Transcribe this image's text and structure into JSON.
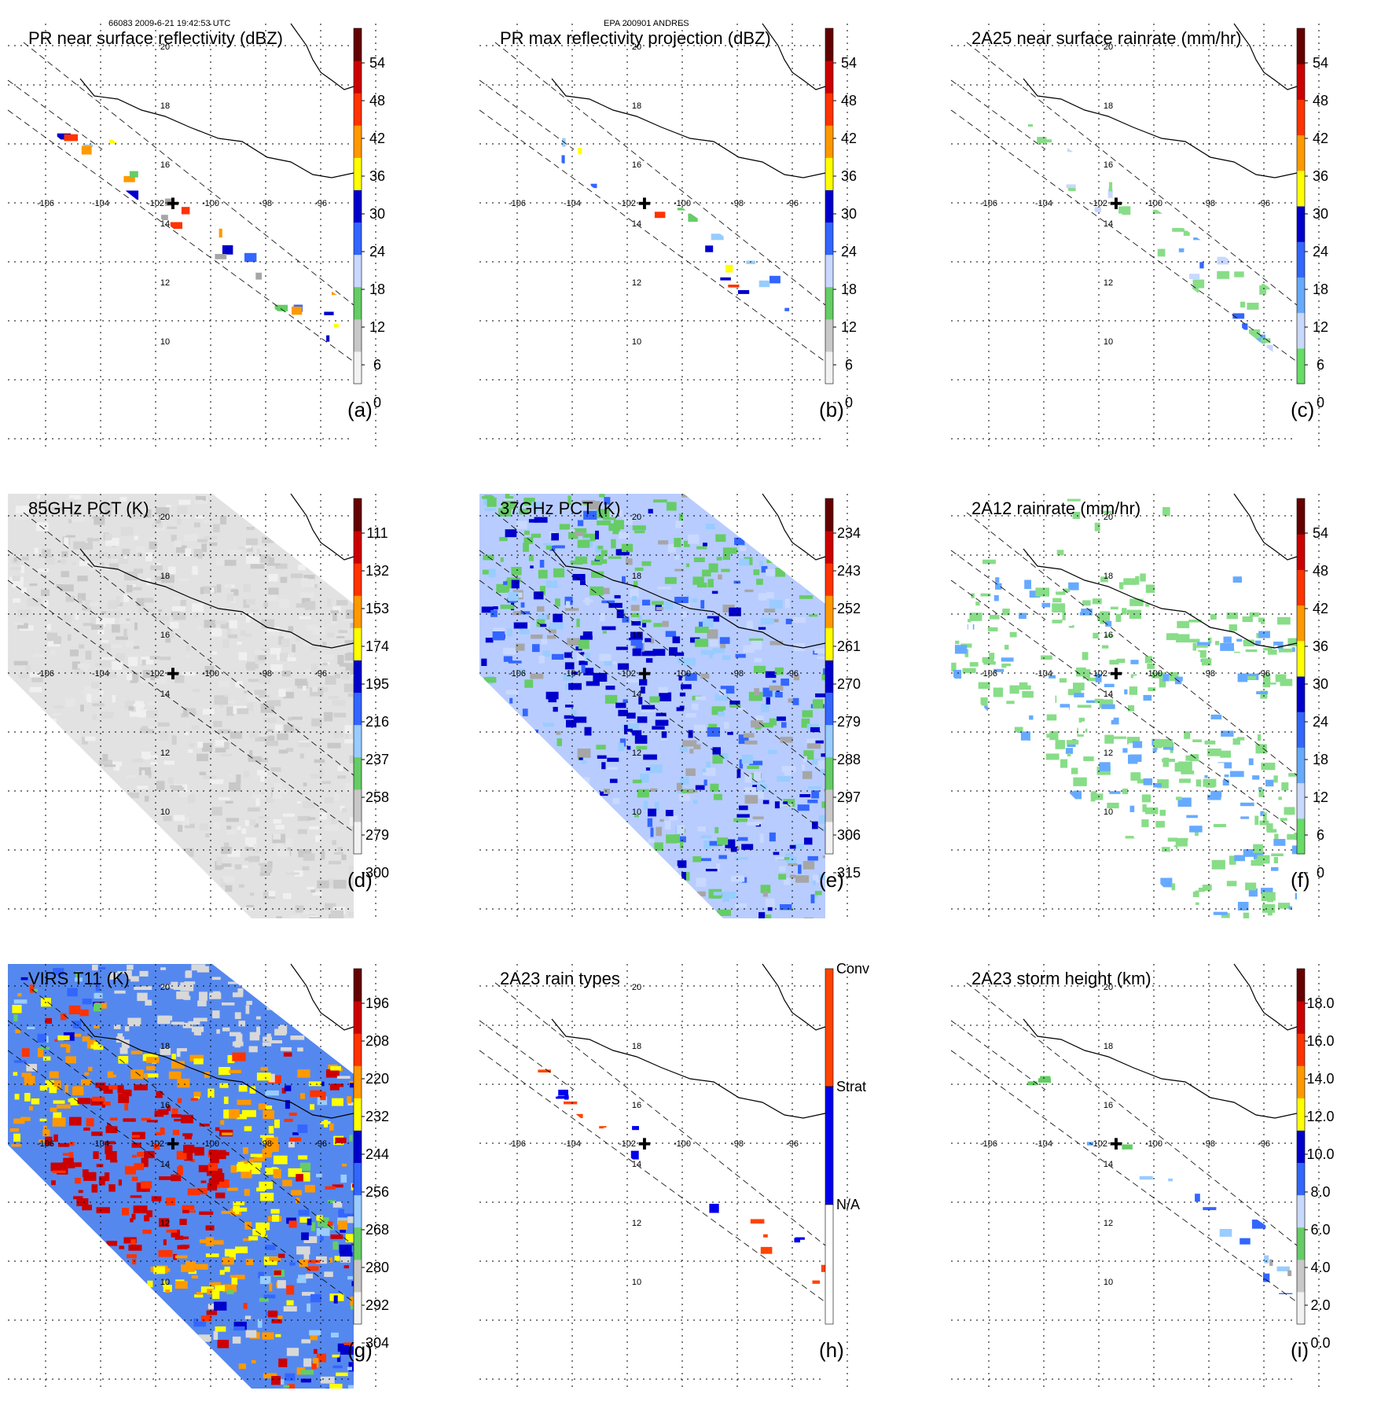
{
  "header": {
    "orbit_time": "66083 2009-6-21 19:42:53 UTC",
    "storm": "EPA 200901 ANDRES"
  },
  "map": {
    "lon_labels": [
      "-106",
      "-104",
      "-102",
      "-100",
      "-98",
      "-96"
    ],
    "lat_labels": [
      "20",
      "18",
      "16",
      "14",
      "12",
      "10"
    ]
  },
  "panels": [
    {
      "id": "a",
      "title": "PR near surface reflectivity (dBZ)",
      "label": "(a)",
      "ticks": [
        "54",
        "48",
        "42",
        "36",
        "30",
        "24",
        "18",
        "12",
        "6",
        "0"
      ],
      "swath": "narrow",
      "field": "pr"
    },
    {
      "id": "b",
      "title": "PR max reflectivity projection (dBZ)",
      "label": "(b)",
      "ticks": [
        "54",
        "48",
        "42",
        "36",
        "30",
        "24",
        "18",
        "12",
        "6",
        "0"
      ],
      "swath": "narrow",
      "field": "prmax"
    },
    {
      "id": "c",
      "title": "2A25 near surface rainrate (mm/hr)",
      "label": "(c)",
      "ticks": [
        "54",
        "48",
        "42",
        "36",
        "30",
        "24",
        "18",
        "12",
        "6",
        "0"
      ],
      "swath": "narrow",
      "field": "rain"
    },
    {
      "id": "d",
      "title": "85GHz PCT (K)",
      "label": "(d)",
      "ticks": [
        "111",
        "132",
        "153",
        "174",
        "195",
        "216",
        "237",
        "258",
        "279",
        "300"
      ],
      "swath": "wide",
      "field": "pct85"
    },
    {
      "id": "e",
      "title": "37GHz PCT (K)",
      "label": "(e)",
      "ticks": [
        "234",
        "243",
        "252",
        "261",
        "270",
        "279",
        "288",
        "297",
        "306",
        "315"
      ],
      "swath": "wide",
      "field": "pct37"
    },
    {
      "id": "f",
      "title": "2A12 rainrate (mm/hr)",
      "label": "(f)",
      "ticks": [
        "54",
        "48",
        "42",
        "36",
        "30",
        "24",
        "18",
        "12",
        "6",
        "0"
      ],
      "swath": "wide",
      "field": "rain12"
    },
    {
      "id": "g",
      "title": "VIRS T11 (K)",
      "label": "(g)",
      "ticks": [
        "196",
        "208",
        "220",
        "232",
        "244",
        "256",
        "268",
        "280",
        "292",
        "304"
      ],
      "swath": "wide",
      "field": "virs"
    },
    {
      "id": "h",
      "title": "2A23 rain types",
      "label": "(h)",
      "ticks": [
        "Conv",
        "Strat",
        "N/A"
      ],
      "swath": "narrow",
      "field": "types"
    },
    {
      "id": "i",
      "title": "2A23 storm height (km)",
      "label": "(i)",
      "ticks": [
        "18.0",
        "16.0",
        "14.0",
        "12.0",
        "10.0",
        "8.0",
        "6.0",
        "4.0",
        "2.0",
        "0.0"
      ],
      "swath": "narrow",
      "field": "height"
    }
  ],
  "colors": {
    "reflectivity_scale": [
      "#f2f2f2",
      "#a6a6a6",
      "#66cc66",
      "#99ccff",
      "#3366ff",
      "#0000cc",
      "#ffff00",
      "#ff9900",
      "#ff3300",
      "#cc0000",
      "#660000"
    ],
    "rain_scale": [
      "#88dd88",
      "#66cc66",
      "#c8d8ff",
      "#66aaff",
      "#3366ff",
      "#0000cc",
      "#ffff00",
      "#ff9900",
      "#ff3300",
      "#cc0000",
      "#660000"
    ],
    "pct85_scale": [
      "#660000",
      "#cc0000",
      "#ff3300",
      "#ff9900",
      "#ffff00",
      "#0000cc",
      "#3366ff",
      "#99ccff",
      "#66cc66",
      "#a6a6a6",
      "#f2f2f2"
    ],
    "rain_types": {
      "Conv": "#ff4400",
      "Strat": "#0000ee",
      "N/A": "#ffffff"
    },
    "storm_center_marker": "#000000"
  }
}
